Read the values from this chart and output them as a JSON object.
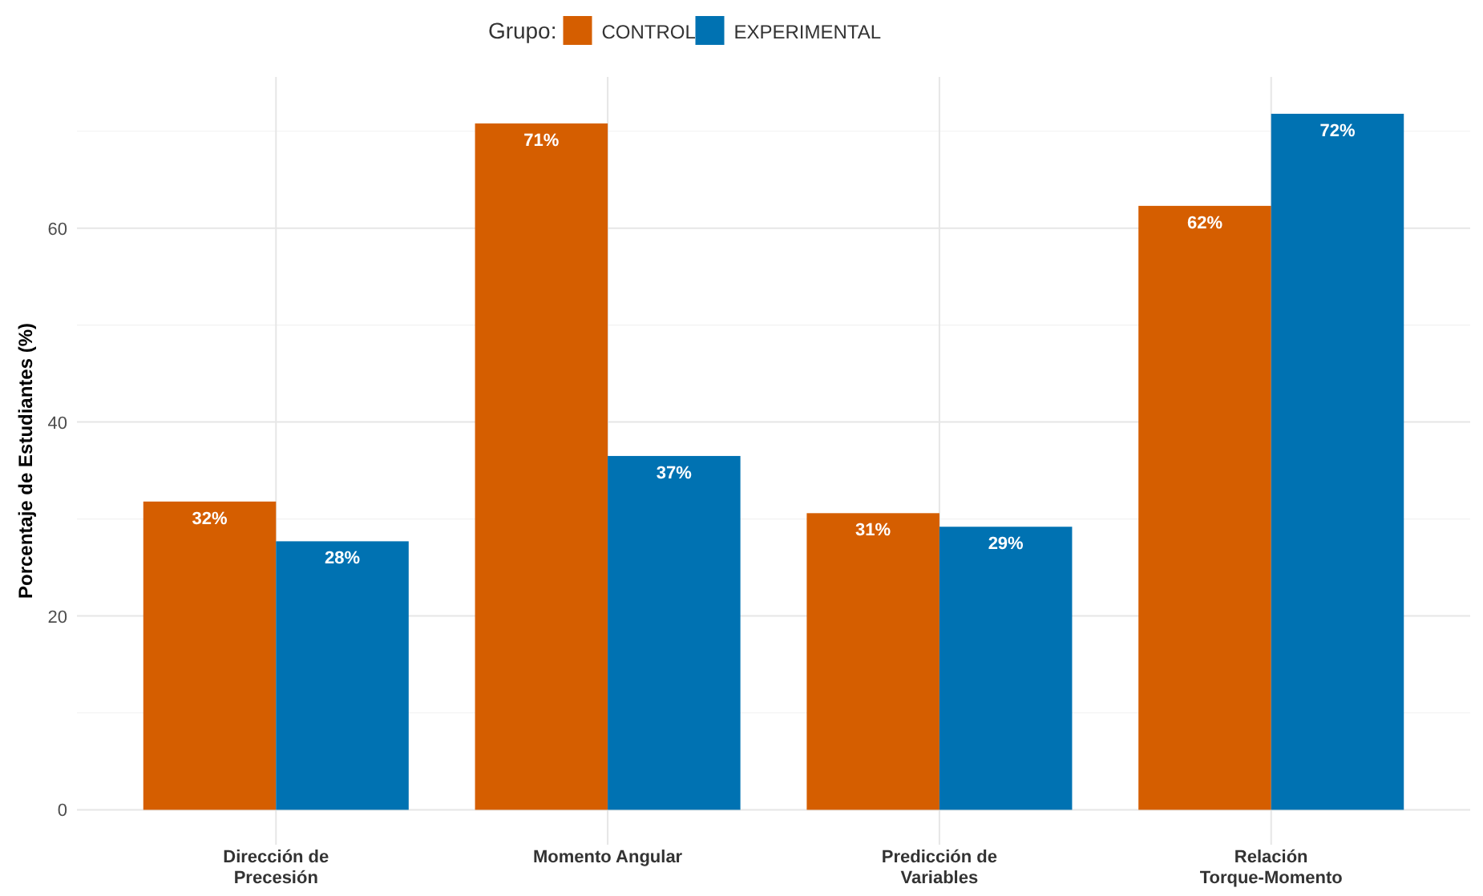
{
  "chart_data": {
    "type": "bar",
    "ylabel": "Porcentaje de Estudiantes (%)",
    "legend_title": "Grupo:",
    "categories": [
      "Dirección de Precesión",
      "Momento Angular",
      "Predicción de Variables",
      "Relación Torque-Momento"
    ],
    "series": [
      {
        "name": "CONTROL",
        "color": "#d55e00",
        "values": [
          31.8,
          70.8,
          30.6,
          62.3
        ],
        "value_labels": [
          "32%",
          "71%",
          "31%",
          "62%"
        ]
      },
      {
        "name": "EXPERIMENTAL",
        "color": "#0072b2",
        "values": [
          27.7,
          36.5,
          29.2,
          71.8
        ],
        "value_labels": [
          "28%",
          "37%",
          "29%",
          "72%"
        ]
      }
    ],
    "ylim": [
      -3.6,
      75.6
    ],
    "yticks": [
      0,
      {
        "value": 10,
        "label": null
      },
      20,
      {
        "value": 30,
        "label": null
      },
      40,
      {
        "value": 50,
        "label": null
      },
      60,
      {
        "value": 70,
        "label": null
      }
    ],
    "grid": true,
    "legend": "top"
  }
}
